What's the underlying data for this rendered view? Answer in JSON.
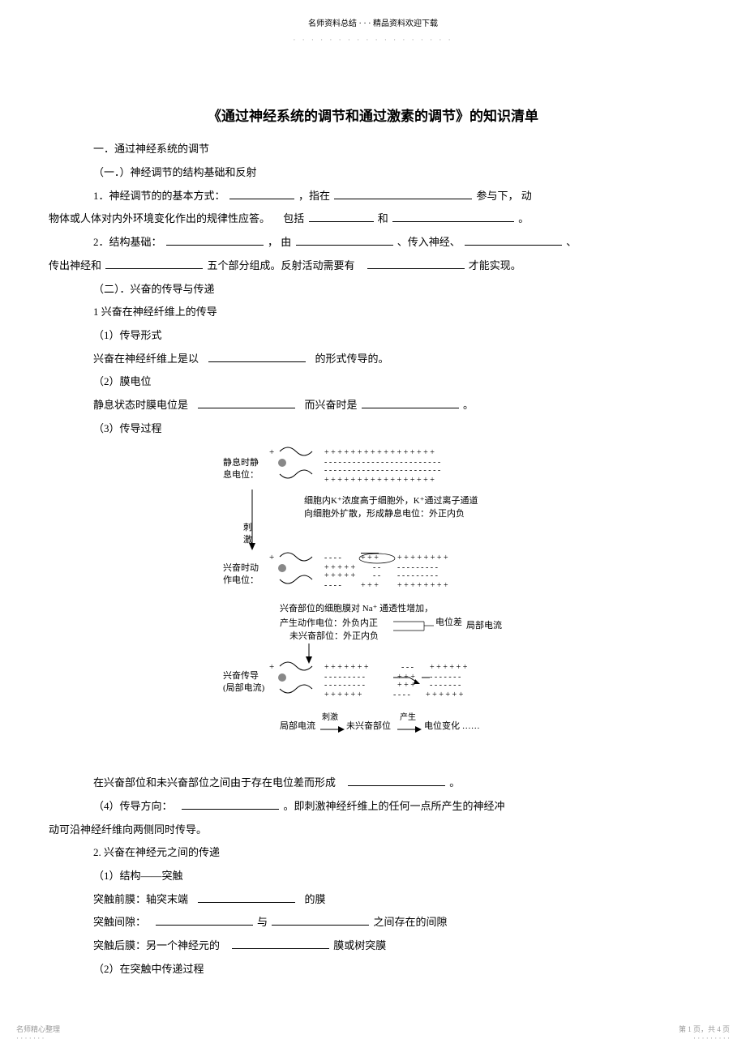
{
  "header": {
    "top": "名师资料总结 · · · 精品资料欢迎下载",
    "dots": "· · · · · · · · · · · · · · · · · ·"
  },
  "title": "《通过神经系统的调节和通过激素的调节》的知识清单",
  "s1": {
    "h1": "一．通过神经系统的调节",
    "h2a": "（一．）神经调节的结构基础和反射",
    "p1a": "1．神经调节的的基本方式：",
    "p1b": "，指在",
    "p1c": "参与下， 动",
    "p1d": "物体或人体对内外环境变化作出的规律性应答。",
    "p1e": "包括",
    "p1f": "和",
    "p1g": "。",
    "p2a": "2．结构基础：",
    "p2b": "， 由",
    "p2c": "、传入神经、",
    "p2d": "、",
    "p2e": "传出神经和",
    "p2f": "五个部分组成。反射活动需要有",
    "p2g": "才能实现。",
    "h2b": "（二）．兴奋的传导与传递",
    "p3": "1 兴奋在神经纤维上的传导",
    "p4": "（1）传导形式",
    "p5a": "兴奋在神经纤维上是以",
    "p5b": "的形式传导的。",
    "p6": "（2）膜电位",
    "p7a": "静息状态时膜电位是",
    "p7b": "而兴奋时是",
    "p7c": "。",
    "p8": "（3）传导过程"
  },
  "diagram": {
    "label1": "静息时静\n息电位：",
    "label2": "刺\n激",
    "label3": "兴奋时动\n作电位：",
    "label4": "兴奋传导\n(局部电流)",
    "text1": "细胞内K⁺浓度高于细胞外，K⁺通过离子通道\n向细胞外扩散，形成静息电位：外正内负",
    "text2": "兴奋部位的细胞膜对 Na⁺ 通透性增加，",
    "text3a": "产生动作电位：外负内正",
    "text3b": "电位差",
    "text3c": "局部电流",
    "text4": "未兴奋部位：外正内负",
    "text5": "局部电流",
    "text5b": "刺激",
    "text6": "未兴奋部位",
    "text6b": "产生",
    "text7": "电位变化 ……"
  },
  "s2": {
    "p1a": "在兴奋部位和未兴奋部位之间由于存在电位差而形成",
    "p1b": "。",
    "p2a": "（4）传导方向：",
    "p2b": "。即刺激神经纤维上的任何一点所产生的神经冲",
    "p2c": "动可沿神经纤维向两侧同时传导。",
    "p3": "2. 兴奋在神经元之间的传递",
    "p4": "（1）结构——突触",
    "p5a": "突触前膜：轴突末端",
    "p5b": "的膜",
    "p6a": "突触间隙：",
    "p6b": "与",
    "p6c": "之间存在的间隙",
    "p7a": "突触后膜：另一个神经元的",
    "p7b": "膜或树突膜",
    "p8": "（2）在突触中传递过程"
  },
  "footer": {
    "left1": "名师精心整理",
    "left2": "· · · · · · ·",
    "right1": "第 1 页，共 4 页",
    "right2": "· · · · · · · · ·"
  }
}
